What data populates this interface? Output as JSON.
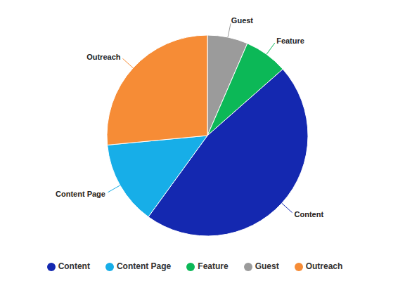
{
  "chart_data": {
    "type": "pie",
    "categories": [
      "Guest",
      "Feature",
      "Content",
      "Content Page",
      "Outreach"
    ],
    "values": [
      6.5,
      7,
      46.5,
      13.5,
      26.5
    ],
    "colors": [
      "#9b9b9b",
      "#0cb857",
      "#1428b0",
      "#17aee8",
      "#f68c36"
    ],
    "legend": "bottom"
  }
}
